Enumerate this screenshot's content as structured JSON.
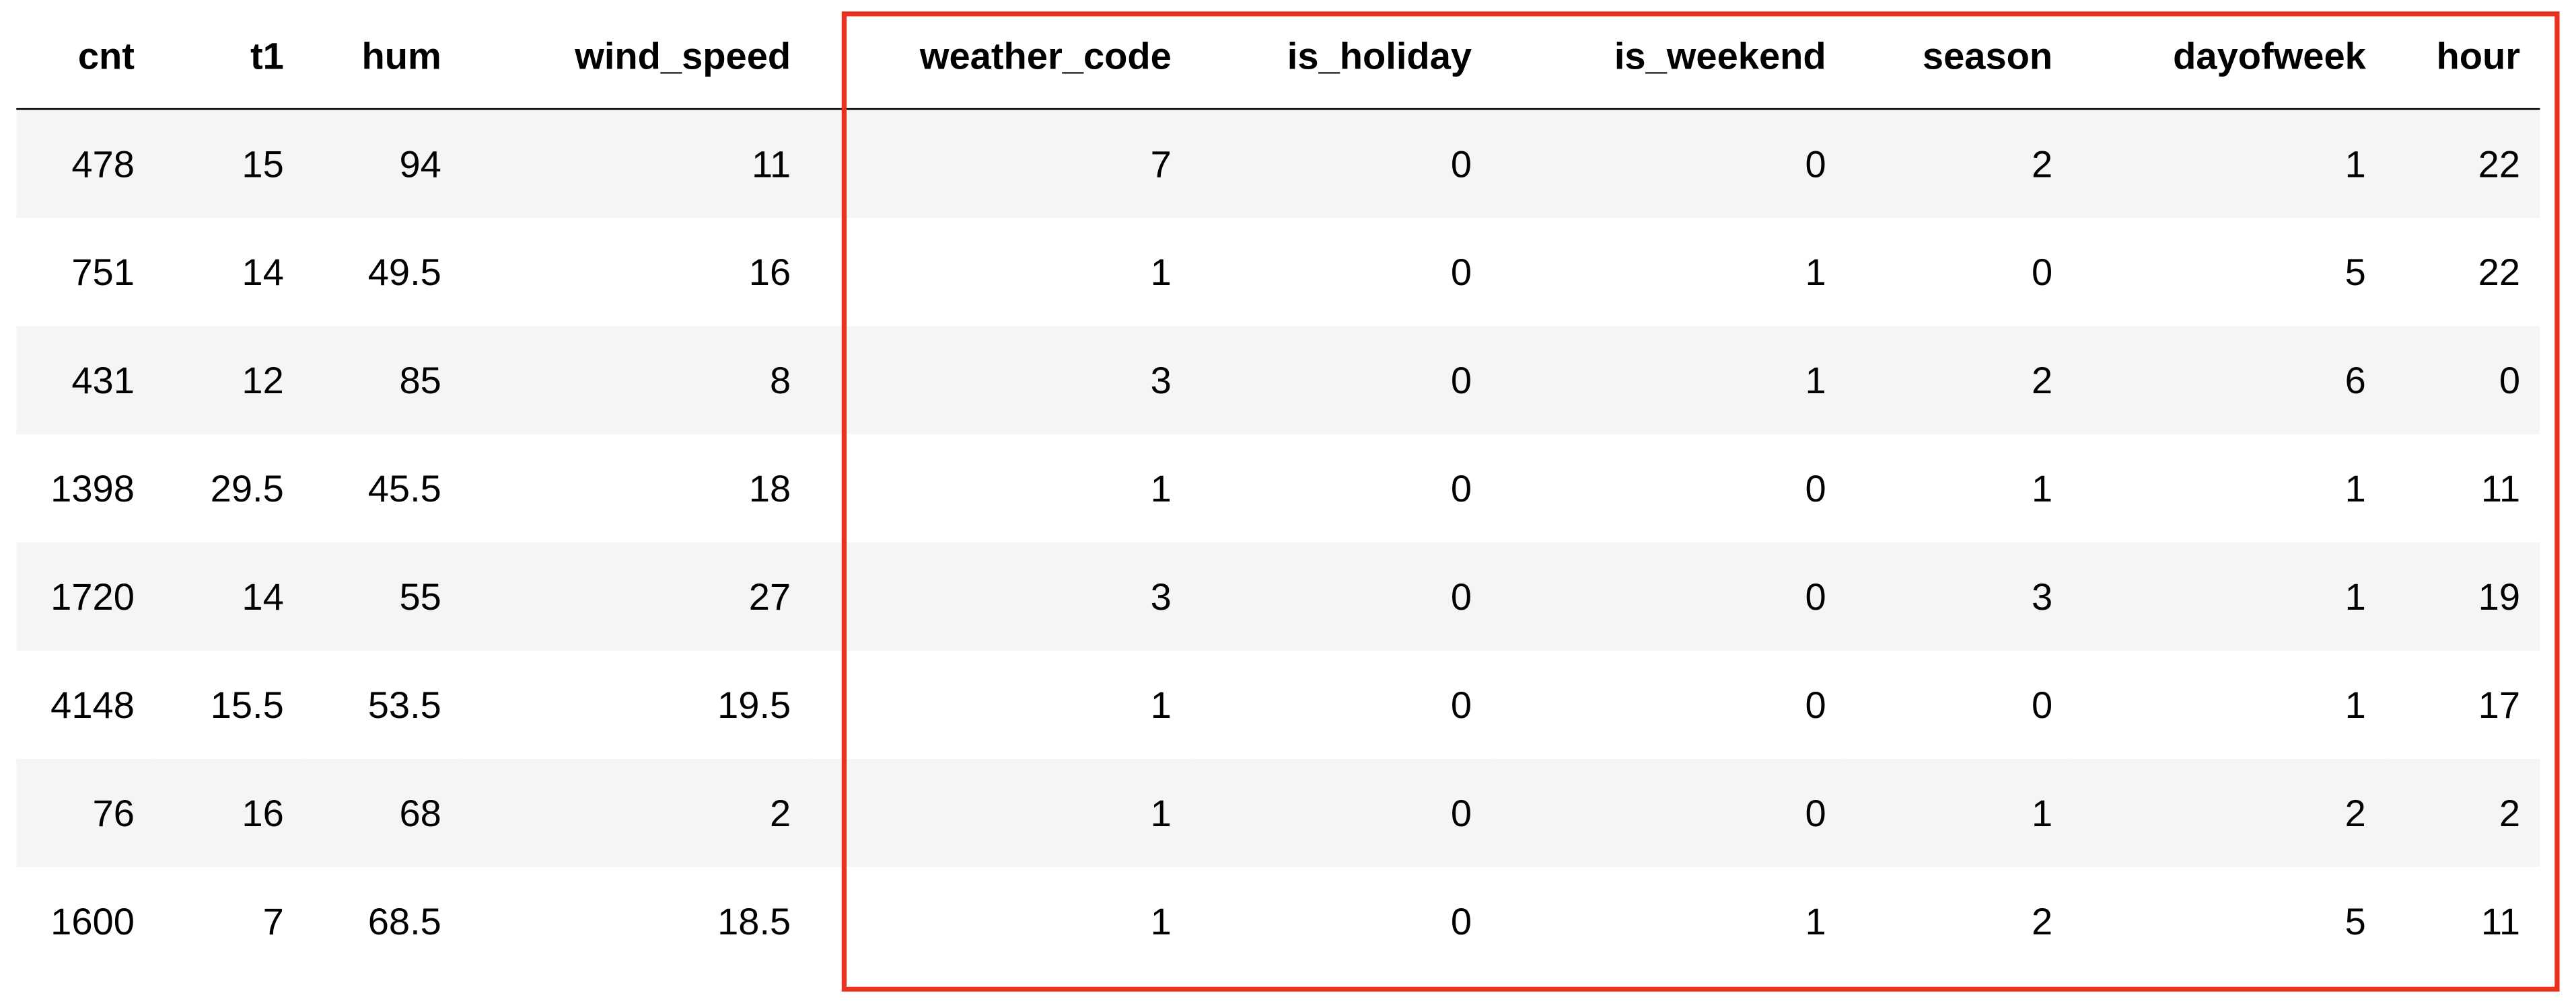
{
  "table": {
    "columns": [
      "cnt",
      "t1",
      "hum",
      "wind_speed",
      "weather_code",
      "is_holiday",
      "is_weekend",
      "season",
      "dayofweek",
      "hour"
    ],
    "rows": [
      [
        "478",
        "15",
        "94",
        "11",
        "7",
        "0",
        "0",
        "2",
        "1",
        "22"
      ],
      [
        "751",
        "14",
        "49.5",
        "16",
        "1",
        "0",
        "1",
        "0",
        "5",
        "22"
      ],
      [
        "431",
        "12",
        "85",
        "8",
        "3",
        "0",
        "1",
        "2",
        "6",
        "0"
      ],
      [
        "1398",
        "29.5",
        "45.5",
        "18",
        "1",
        "0",
        "0",
        "1",
        "1",
        "11"
      ],
      [
        "1720",
        "14",
        "55",
        "27",
        "3",
        "0",
        "0",
        "3",
        "1",
        "19"
      ],
      [
        "4148",
        "15.5",
        "53.5",
        "19.5",
        "1",
        "0",
        "0",
        "0",
        "1",
        "17"
      ],
      [
        "76",
        "16",
        "68",
        "2",
        "1",
        "0",
        "0",
        "1",
        "2",
        "2"
      ],
      [
        "1600",
        "7",
        "68.5",
        "18.5",
        "1",
        "0",
        "1",
        "2",
        "5",
        "11"
      ]
    ]
  },
  "highlight": {
    "color": "#e8321f",
    "columns": [
      "weather_code",
      "is_holiday",
      "is_weekend",
      "season",
      "dayofweek",
      "hour"
    ]
  }
}
